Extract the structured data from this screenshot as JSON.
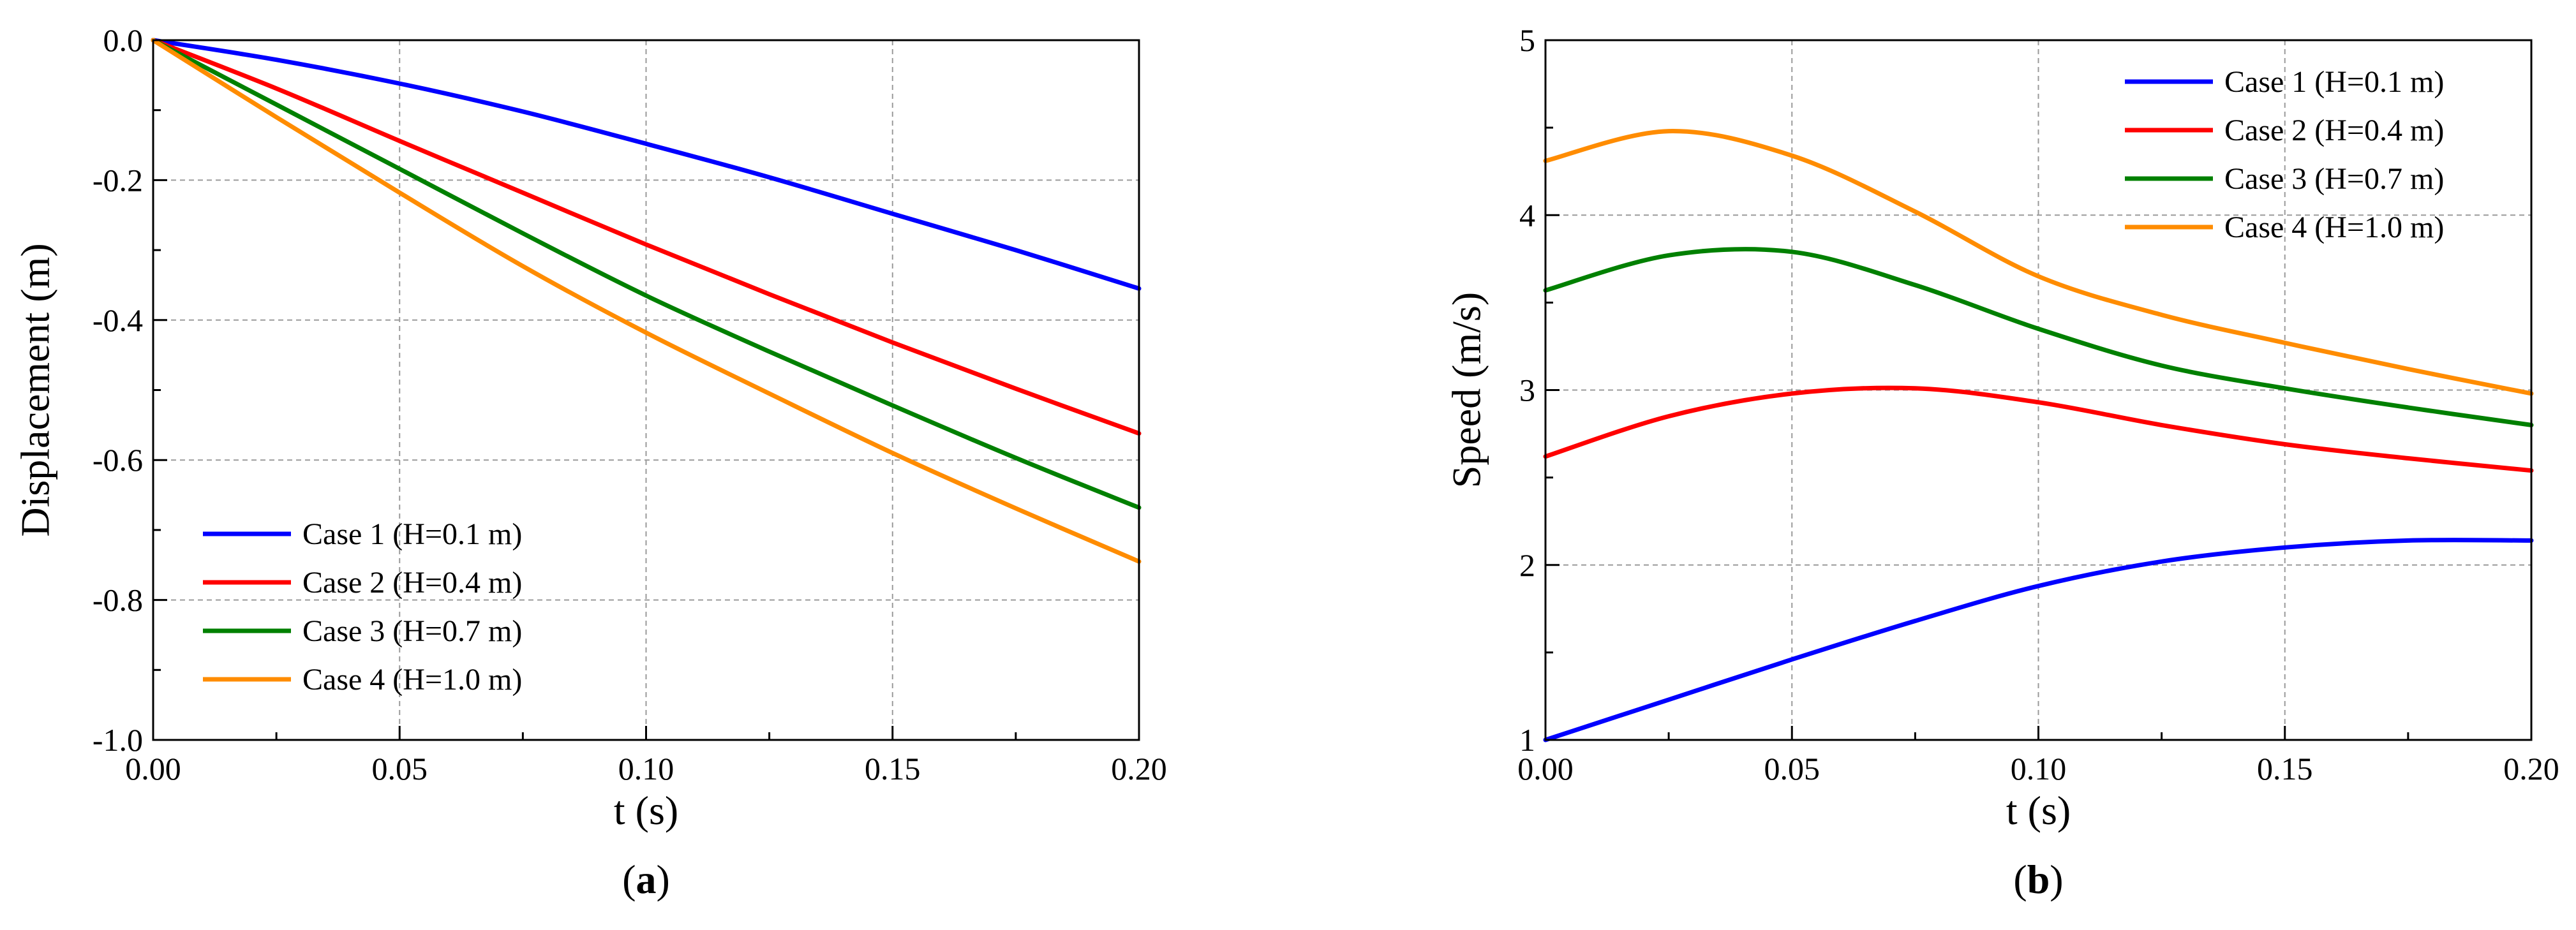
{
  "chart_data": [
    {
      "type": "line",
      "panel_label": "a",
      "xlabel": "t (s)",
      "ylabel": "Displacement (m)",
      "xlim": [
        0.0,
        0.2
      ],
      "ylim": [
        -1.0,
        0.0
      ],
      "xticks": [
        0.0,
        0.05,
        0.1,
        0.15,
        0.2
      ],
      "xtick_labels": [
        "0.00",
        "0.05",
        "0.10",
        "0.15",
        "0.20"
      ],
      "yticks": [
        -1.0,
        -0.8,
        -0.6,
        -0.4,
        -0.2,
        0.0
      ],
      "ytick_labels": [
        "-1.0",
        "-0.8",
        "-0.6",
        "-0.4",
        "-0.2",
        "0.0"
      ],
      "grid": true,
      "legend_position": "bottom-left",
      "x": [
        0.0,
        0.025,
        0.05,
        0.075,
        0.1,
        0.125,
        0.15,
        0.175,
        0.2
      ],
      "series": [
        {
          "name": "Case 1 (H=0.1 m)",
          "color": "#0000ff",
          "values": [
            0.0,
            -0.028,
            -0.062,
            -0.102,
            -0.148,
            -0.196,
            -0.248,
            -0.3,
            -0.355
          ]
        },
        {
          "name": "Case 2 (H=0.4 m)",
          "color": "#ff0000",
          "values": [
            0.0,
            -0.069,
            -0.144,
            -0.218,
            -0.292,
            -0.363,
            -0.432,
            -0.498,
            -0.562
          ]
        },
        {
          "name": "Case 3 (H=0.7 m)",
          "color": "#008000",
          "values": [
            0.0,
            -0.092,
            -0.184,
            -0.276,
            -0.365,
            -0.445,
            -0.522,
            -0.597,
            -0.668
          ]
        },
        {
          "name": "Case 4 (H=1.0 m)",
          "color": "#ff8c00",
          "values": [
            0.0,
            -0.11,
            -0.218,
            -0.323,
            -0.418,
            -0.505,
            -0.59,
            -0.669,
            -0.745
          ]
        }
      ]
    },
    {
      "type": "line",
      "panel_label": "b",
      "xlabel": "t (s)",
      "ylabel": "Speed (m/s)",
      "xlim": [
        0.0,
        0.2
      ],
      "ylim": [
        1,
        5
      ],
      "xticks": [
        0.0,
        0.05,
        0.1,
        0.15,
        0.2
      ],
      "xtick_labels": [
        "0.00",
        "0.05",
        "0.10",
        "0.15",
        "0.20"
      ],
      "yticks": [
        1,
        2,
        3,
        4,
        5
      ],
      "ytick_labels": [
        "1",
        "2",
        "3",
        "4",
        "5"
      ],
      "grid": true,
      "legend_position": "top-right",
      "x": [
        0.0,
        0.025,
        0.05,
        0.075,
        0.1,
        0.125,
        0.15,
        0.175,
        0.2
      ],
      "series": [
        {
          "name": "Case 1 (H=0.1 m)",
          "color": "#0000ff",
          "values": [
            1.0,
            1.23,
            1.46,
            1.68,
            1.88,
            2.02,
            2.1,
            2.14,
            2.14
          ]
        },
        {
          "name": "Case 2 (H=0.4 m)",
          "color": "#ff0000",
          "values": [
            2.62,
            2.85,
            2.98,
            3.01,
            2.93,
            2.8,
            2.69,
            2.61,
            2.54
          ]
        },
        {
          "name": "Case 3 (H=0.7 m)",
          "color": "#008000",
          "values": [
            3.57,
            3.77,
            3.79,
            3.6,
            3.35,
            3.14,
            3.01,
            2.9,
            2.8
          ]
        },
        {
          "name": "Case 4 (H=1.0 m)",
          "color": "#ff8c00",
          "values": [
            4.31,
            4.48,
            4.34,
            4.02,
            3.65,
            3.43,
            3.27,
            3.12,
            2.98
          ]
        }
      ]
    }
  ]
}
